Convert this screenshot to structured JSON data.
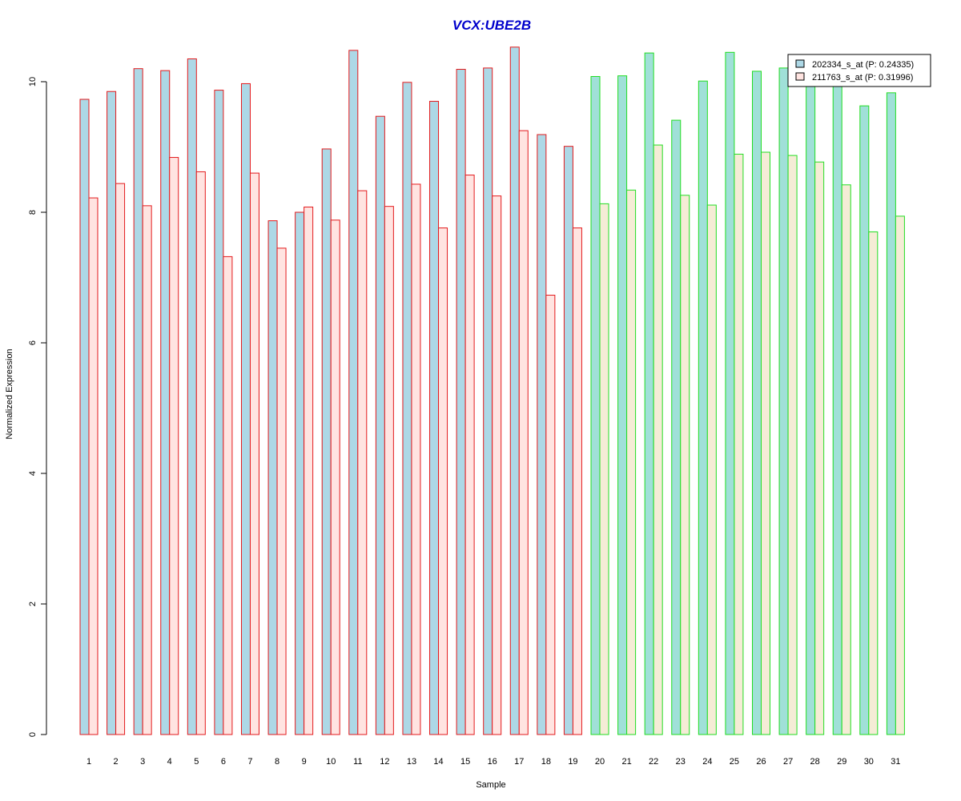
{
  "colors": {
    "title": "#0000cc",
    "group1_border": "#e31a1c",
    "group2_border": "#22dd22",
    "series1_fill_g1": "#add8e6",
    "series2_fill_g1": "#ffe4e1",
    "series1_fill_g2": "#a0e0d8",
    "series2_fill_g2": "#f5ecd6",
    "legend_series1": "#add8e6",
    "legend_series2": "#ffe4e1"
  },
  "chart_data": {
    "type": "bar",
    "title": "VCX:UBE2B",
    "xlabel": "Sample",
    "ylabel": "Normalized Expression",
    "ylim": [
      0,
      10.6
    ],
    "yticks": [
      0,
      2,
      4,
      6,
      8,
      10
    ],
    "categories": [
      "1",
      "2",
      "3",
      "4",
      "5",
      "6",
      "7",
      "8",
      "9",
      "10",
      "11",
      "12",
      "13",
      "14",
      "15",
      "16",
      "17",
      "18",
      "19",
      "20",
      "21",
      "22",
      "23",
      "24",
      "25",
      "26",
      "27",
      "28",
      "29",
      "30",
      "31"
    ],
    "groups": [
      1,
      1,
      1,
      1,
      1,
      1,
      1,
      1,
      1,
      1,
      1,
      1,
      1,
      1,
      1,
      1,
      1,
      1,
      1,
      2,
      2,
      2,
      2,
      2,
      2,
      2,
      2,
      2,
      2,
      2,
      2
    ],
    "series": [
      {
        "name": "202334_s_at (P: 0.24335)",
        "values": [
          9.73,
          9.85,
          10.2,
          10.17,
          10.35,
          9.87,
          9.97,
          7.87,
          8.0,
          8.97,
          10.48,
          9.47,
          9.99,
          9.7,
          10.19,
          10.21,
          10.53,
          9.19,
          9.01,
          10.08,
          10.09,
          10.44,
          9.41,
          10.01,
          10.45,
          10.16,
          10.21,
          10.0,
          10.0,
          9.63,
          9.83
        ]
      },
      {
        "name": "211763_s_at (P: 0.31996)",
        "values": [
          8.22,
          8.44,
          8.1,
          8.84,
          8.62,
          7.32,
          8.6,
          7.45,
          8.08,
          7.88,
          8.33,
          8.09,
          8.43,
          7.76,
          8.57,
          8.25,
          9.25,
          6.73,
          7.76,
          8.13,
          8.34,
          9.03,
          8.26,
          8.11,
          8.89,
          8.92,
          8.87,
          8.77,
          8.42,
          7.7,
          7.94
        ]
      }
    ],
    "legend_position": "top-right"
  }
}
